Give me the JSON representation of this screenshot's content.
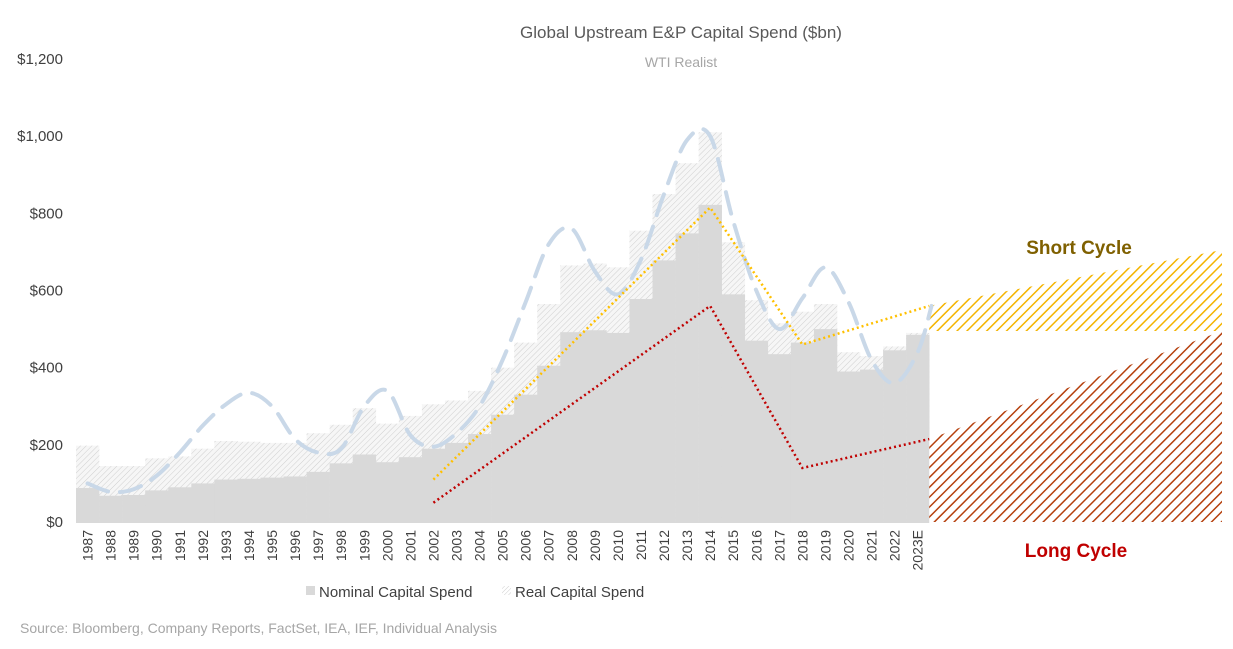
{
  "chart_data": {
    "type": "bar",
    "title": "Global Upstream E&P Capital Spend ($bn)",
    "subtitle": "WTI Realist",
    "categories": [
      "1987",
      "1988",
      "1989",
      "1990",
      "1991",
      "1992",
      "1993",
      "1994",
      "1995",
      "1996",
      "1997",
      "1998",
      "1999",
      "2000",
      "2001",
      "2002",
      "2003",
      "2004",
      "2005",
      "2006",
      "2007",
      "2008",
      "2009",
      "2010",
      "2011",
      "2012",
      "2013",
      "2014",
      "2015",
      "2016",
      "2017",
      "2018",
      "2019",
      "2020",
      "2021",
      "2022",
      "2023E"
    ],
    "series": [
      {
        "name": "Nominal Capital Spend",
        "color": "#d9d9d9",
        "values": [
          88,
          68,
          70,
          82,
          90,
          100,
          110,
          112,
          115,
          118,
          130,
          152,
          175,
          155,
          168,
          190,
          205,
          228,
          278,
          330,
          405,
          492,
          497,
          490,
          578,
          678,
          748,
          822,
          590,
          470,
          435,
          465,
          500,
          390,
          395,
          445,
          485
        ]
      },
      {
        "name": "Real Capital Spend",
        "pattern": "light-hatch",
        "values": [
          198,
          145,
          145,
          165,
          170,
          190,
          210,
          208,
          205,
          205,
          230,
          252,
          295,
          255,
          275,
          305,
          315,
          340,
          400,
          465,
          565,
          665,
          670,
          660,
          755,
          850,
          930,
          1010,
          725,
          575,
          515,
          545,
          565,
          440,
          430,
          455,
          490
        ]
      }
    ],
    "trend_curve": {
      "color": "#c9d8e8",
      "style": "dashed",
      "points": [
        [
          0,
          100
        ],
        [
          1,
          78
        ],
        [
          2,
          85
        ],
        [
          3,
          120
        ],
        [
          4,
          180
        ],
        [
          5,
          250
        ],
        [
          6,
          305
        ],
        [
          7,
          335
        ],
        [
          8,
          300
        ],
        [
          9,
          215
        ],
        [
          10,
          180
        ],
        [
          11,
          190
        ],
        [
          12,
          300
        ],
        [
          13,
          340
        ],
        [
          14,
          225
        ],
        [
          15,
          195
        ],
        [
          16,
          230
        ],
        [
          17,
          300
        ],
        [
          18,
          420
        ],
        [
          19,
          570
        ],
        [
          20,
          720
        ],
        [
          21,
          760
        ],
        [
          22,
          650
        ],
        [
          23,
          590
        ],
        [
          24,
          680
        ],
        [
          25,
          850
        ],
        [
          26,
          990
        ],
        [
          27,
          1000
        ],
        [
          28,
          780
        ],
        [
          29,
          600
        ],
        [
          30,
          500
        ],
        [
          31,
          580
        ],
        [
          32,
          660
        ],
        [
          33,
          570
        ],
        [
          34,
          420
        ],
        [
          35,
          360
        ],
        [
          36,
          440
        ],
        [
          36.6,
          560
        ]
      ]
    },
    "short_cycle_trend": {
      "color": "#ffc000",
      "points": [
        [
          "2002",
          110
        ],
        [
          "2014",
          815
        ],
        [
          "2018",
          460
        ],
        [
          "2023E",
          560
        ]
      ]
    },
    "long_cycle_trend": {
      "color": "#c00000",
      "points": [
        [
          "2002",
          50
        ],
        [
          "2014",
          560
        ],
        [
          "2018",
          140
        ],
        [
          "2023E",
          215
        ]
      ]
    },
    "short_cycle_band": {
      "color": "#ffc000",
      "start": [
        560,
        495
      ],
      "end": [
        705,
        495
      ]
    },
    "long_cycle_band": {
      "color": "#c55a11",
      "start": [
        215,
        0
      ],
      "end": [
        495,
        0
      ]
    },
    "y_ticks": [
      "$0",
      "$200",
      "$400",
      "$600",
      "$800",
      "$1,000",
      "$1,200"
    ],
    "ylim": [
      0,
      1200
    ],
    "legend": [
      "Nominal Capital Spend",
      "Real Capital Spend"
    ],
    "annotations": {
      "short_cycle": "Short Cycle",
      "long_cycle": "Long Cycle"
    },
    "source": "Source: Bloomberg, Company Reports, FactSet, IEA, IEF, Individual Analysis"
  }
}
